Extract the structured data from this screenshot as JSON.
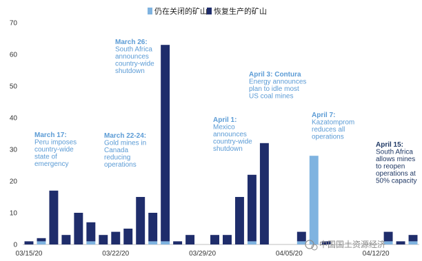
{
  "chart_data": {
    "type": "bar",
    "stacked": true,
    "title": "",
    "xlabel": "",
    "ylabel": "",
    "ylim": [
      0,
      70
    ],
    "yticks": [
      0,
      10,
      20,
      30,
      40,
      50,
      60,
      70
    ],
    "grid": false,
    "legend_position": "top-right",
    "categories": [
      "03/15/20",
      "03/16/20",
      "03/17/20",
      "03/18/20",
      "03/19/20",
      "03/20/20",
      "03/21/20",
      "03/22/20",
      "03/23/20",
      "03/24/20",
      "03/25/20",
      "03/26/20",
      "03/27/20",
      "03/28/20",
      "03/29/20",
      "03/30/20",
      "03/31/20",
      "04/01/20",
      "04/02/20",
      "04/03/20",
      "04/04/20",
      "04/05/20",
      "04/06/20",
      "04/07/20",
      "04/08/20",
      "04/09/20",
      "04/10/20",
      "04/11/20",
      "04/12/20",
      "04/13/20",
      "04/14/20",
      "04/15/20"
    ],
    "x_tick_labels": [
      "03/15/20",
      "03/22/20",
      "03/29/20",
      "04/05/20",
      "04/12/20"
    ],
    "series": [
      {
        "name": "仍在关闭的矿山",
        "color": "#7fb3e0",
        "values": [
          0,
          1,
          0,
          0,
          0,
          1,
          0,
          0,
          0,
          0,
          1,
          1,
          0,
          0,
          0,
          0,
          0,
          0,
          1,
          0,
          0,
          0,
          1,
          28,
          0,
          0,
          0,
          0,
          0,
          1,
          0,
          1
        ]
      },
      {
        "name": "恢复生产的矿山",
        "color": "#1f2d6b",
        "values": [
          1,
          1,
          17,
          3,
          10,
          6,
          3,
          4,
          5,
          15,
          9,
          62,
          1,
          3,
          0,
          3,
          3,
          15,
          21,
          32,
          0,
          0,
          3,
          0,
          1,
          0,
          0,
          0,
          0,
          3,
          1,
          2
        ]
      }
    ],
    "annotations": [
      {
        "lines": [
          "March 17:",
          "Peru imposes",
          "country-wide",
          "state of",
          "emergency"
        ]
      },
      {
        "lines": [
          "March 22-24:",
          "Gold mines in",
          "Canada",
          "reducing",
          "operations"
        ]
      },
      {
        "lines": [
          "March 26:",
          "South Africa",
          "announces",
          "country-wide",
          "shutdown"
        ]
      },
      {
        "lines": [
          "April 1:",
          "Mexico",
          "announces",
          "country-wide",
          "shutdown"
        ]
      },
      {
        "lines": [
          "April 3: Contura",
          "Energy announces",
          "plan to idle most",
          "US coal mines"
        ]
      },
      {
        "lines": [
          "April 7:",
          "Kazatomprom",
          "reduces all",
          "operations"
        ]
      },
      {
        "lines": [
          "April 15:",
          "South Africa",
          "allows mines",
          "to reopen",
          "operations at",
          "50% capacity"
        ]
      }
    ]
  },
  "watermark": "中国国土资源经济"
}
